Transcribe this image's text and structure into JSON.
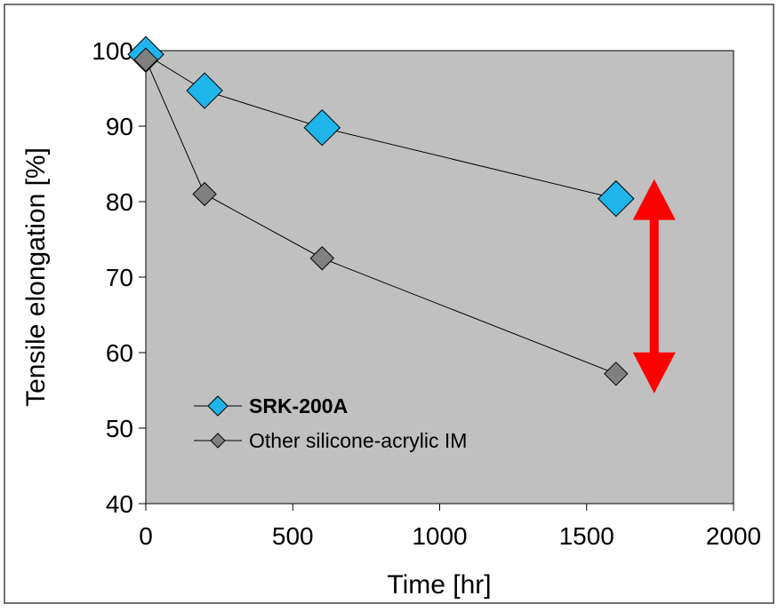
{
  "chart_data": {
    "type": "line",
    "title": "",
    "xlabel": "Time [hr]",
    "ylabel": "Tensile elongation [%]",
    "xlim": [
      0,
      2000
    ],
    "ylim": [
      40,
      100
    ],
    "xticks": [
      0,
      500,
      1000,
      1500,
      2000
    ],
    "yticks": [
      40,
      50,
      60,
      70,
      80,
      90,
      100
    ],
    "xtick_labels": [
      "0",
      "500",
      "1000",
      "1500",
      "2000"
    ],
    "ytick_labels": [
      "40",
      "50",
      "60",
      "70",
      "80",
      "90",
      "100"
    ],
    "grid": false,
    "legend_position": "bottom-left",
    "plot_background": "#c0c0c0",
    "series": [
      {
        "name": "SRK-200A",
        "marker": "diamond",
        "color": "#1fb4ea",
        "bold_label": true,
        "x": [
          0,
          200,
          600,
          1600
        ],
        "y": [
          99.5,
          94.7,
          89.8,
          80.4
        ]
      },
      {
        "name": "Other silicone-acrylic IM",
        "marker": "diamond",
        "color": "#808080",
        "bold_label": false,
        "x": [
          0,
          200,
          600,
          1600
        ],
        "y": [
          98.8,
          81.0,
          72.5,
          57.2
        ]
      }
    ],
    "annotations": [
      {
        "type": "double-arrow",
        "color": "#ff0000",
        "x": 1730,
        "y_from": 80.4,
        "y_to": 57.2
      }
    ]
  }
}
